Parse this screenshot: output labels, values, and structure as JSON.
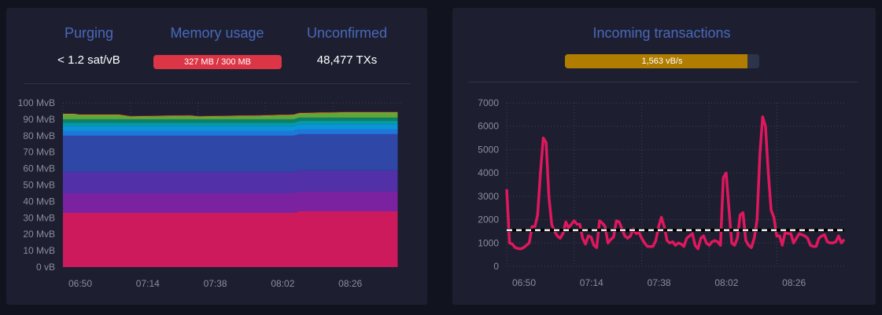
{
  "left": {
    "purging": {
      "label": "Purging",
      "value": "< 1.2 sat/vB"
    },
    "memory": {
      "label": "Memory usage",
      "value": "327 MB / 300 MB",
      "color": "#dc3545"
    },
    "unconfirmed": {
      "label": "Unconfirmed",
      "value": "48,477 TXs"
    }
  },
  "right": {
    "title": "Incoming transactions",
    "rate": {
      "value": "1,563 vB/s",
      "fill_percent": 94,
      "color": "#b07d00"
    }
  },
  "chart_data": [
    {
      "type": "area",
      "stacked": true,
      "ylim": [
        0,
        100
      ],
      "yticks": [
        "0 vB",
        "10 MvB",
        "20 MvB",
        "30 MvB",
        "40 MvB",
        "50 MvB",
        "60 MvB",
        "70 MvB",
        "80 MvB",
        "90 MvB",
        "100 MvB"
      ],
      "xticks": [
        "06:50",
        "07:14",
        "07:38",
        "08:02",
        "08:26"
      ],
      "x": [
        "06:50",
        "06:54",
        "06:56",
        "07:10",
        "07:14",
        "07:35",
        "07:38",
        "08:00",
        "08:12",
        "08:14",
        "08:30",
        "08:49"
      ],
      "series": [
        {
          "color": "#cc1a5c",
          "values": [
            33,
            33,
            33,
            33,
            33,
            33,
            33,
            33,
            33,
            34,
            34,
            34
          ]
        },
        {
          "color": "#7b22a0",
          "values": [
            12,
            12,
            12,
            12,
            12,
            12,
            12,
            12,
            12,
            12,
            12,
            12
          ]
        },
        {
          "color": "#5231a8",
          "values": [
            13,
            13,
            13,
            13,
            13,
            13,
            13,
            13,
            13,
            13,
            13,
            13
          ]
        },
        {
          "color": "#2f48a8",
          "values": [
            22,
            22,
            22,
            22,
            22,
            22,
            22,
            22,
            22,
            22,
            22,
            22
          ]
        },
        {
          "color": "#1e78dc",
          "values": [
            3,
            3,
            3,
            3,
            3,
            3,
            3,
            3,
            3,
            3,
            3,
            3
          ]
        },
        {
          "color": "#0a95d6",
          "values": [
            3,
            3,
            3,
            3,
            3,
            3,
            3,
            3,
            3,
            3,
            3,
            3
          ]
        },
        {
          "color": "#049aa8",
          "values": [
            2,
            2,
            2,
            2,
            2,
            2,
            2,
            2,
            2,
            2,
            2,
            2
          ]
        },
        {
          "color": "#0d8066",
          "values": [
            2,
            2,
            2,
            2,
            2,
            2,
            2,
            2,
            2,
            2,
            2,
            2
          ]
        },
        {
          "color": "#5ea83a",
          "values": [
            3,
            3,
            2.5,
            2.5,
            1.5,
            2,
            1.5,
            2,
            2.5,
            2.5,
            3,
            3
          ]
        },
        {
          "color": "#d8a519",
          "values": [
            0.3,
            0.3,
            0.3,
            0.3,
            0.3,
            0.3,
            0.3,
            0.3,
            0.3,
            0.3,
            0.3,
            0.3
          ]
        },
        {
          "color": "#c0263f",
          "values": [
            0.2,
            0.2,
            0.2,
            0.2,
            0.2,
            0.2,
            0.2,
            0.2,
            0.2,
            0.2,
            0.2,
            0.2
          ]
        }
      ]
    },
    {
      "type": "line",
      "ylim": [
        0,
        7000
      ],
      "yticks": [
        "0",
        "1000",
        "2000",
        "3000",
        "4000",
        "5000",
        "6000",
        "7000"
      ],
      "xticks": [
        "06:50",
        "07:14",
        "07:38",
        "08:02",
        "08:26"
      ],
      "reference_line": {
        "value": 1550,
        "style": "dashed",
        "color": "#ffffff"
      },
      "series": [
        {
          "color": "#e0175d",
          "start": "06:50",
          "interval_minutes": 1,
          "values": [
            3300,
            1000,
            950,
            800,
            760,
            750,
            800,
            900,
            1000,
            1700,
            1700,
            2200,
            4000,
            5500,
            5300,
            3000,
            1800,
            1500,
            1300,
            1200,
            1400,
            1900,
            1650,
            1800,
            1950,
            1800,
            1800,
            1200,
            950,
            1300,
            1250,
            900,
            800,
            1950,
            1850,
            1700,
            1000,
            1150,
            1250,
            1950,
            1900,
            1600,
            1300,
            1200,
            1300,
            1600,
            1400,
            1450,
            1200,
            1000,
            850,
            850,
            850,
            1100,
            1700,
            2100,
            1700,
            1100,
            1000,
            1050,
            900,
            1000,
            950,
            850,
            1200,
            1300,
            1400,
            900,
            750,
            1200,
            1300,
            1000,
            900,
            1050,
            1100,
            1050,
            900,
            3800,
            4000,
            2500,
            1000,
            900,
            1200,
            2200,
            2300,
            1100,
            900,
            800,
            1200,
            2000,
            4800,
            6400,
            6000,
            4000,
            2400,
            2100,
            1300,
            1300,
            900,
            1450,
            1400,
            1400,
            1000,
            1200,
            1400,
            1350,
            1300,
            1200,
            900,
            850,
            850,
            1200,
            1300,
            1350,
            1050,
            1000,
            1000,
            1050,
            1300,
            1000,
            1150
          ]
        }
      ]
    }
  ]
}
